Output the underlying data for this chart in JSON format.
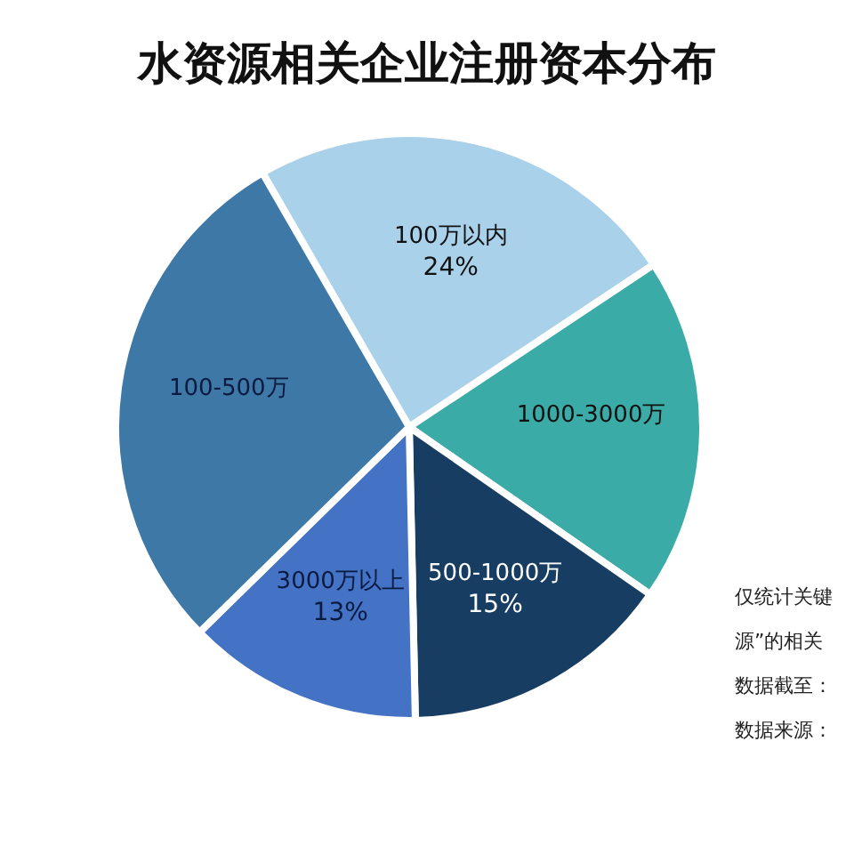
{
  "chart_data": {
    "type": "pie",
    "title": "水资源相关企业注册资本分布",
    "categories": [
      "100万以内",
      "1000-3000万",
      "500-1000万",
      "3000万以上",
      "100-500万"
    ],
    "values": [
      24,
      19,
      15,
      13,
      29
    ],
    "value_labels": [
      "24%",
      null,
      "15%",
      "13%",
      null
    ],
    "colors": [
      "#a9d1ea",
      "#3aaba6",
      "#173e62",
      "#4472c4",
      "#3d78a6"
    ],
    "annotations": [
      "仅统计关键",
      "源”的相关",
      "数据截至：",
      "数据来源："
    ]
  }
}
